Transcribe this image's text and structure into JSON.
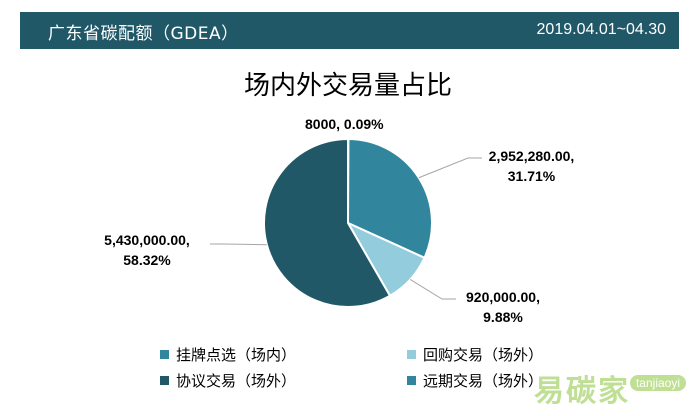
{
  "header": {
    "title": "广东省碳配额（GDEA）",
    "date_range": "2019.04.01~04.30",
    "background_color": "#215868"
  },
  "chart_data": {
    "type": "pie",
    "title": "场内外交易量占比",
    "slices": [
      {
        "name": "挂牌点选（场内）",
        "value": 2952280.0,
        "percent": 31.71,
        "label_value": "2,952,280.00,",
        "label_percent": "31.71%",
        "color": "#31859c"
      },
      {
        "name": "回购交易（场外）",
        "value": 920000.0,
        "percent": 9.88,
        "label_value": "920,000.00,",
        "label_percent": "9.88%",
        "color": "#93cddd"
      },
      {
        "name": "协议交易（场外）",
        "value": 5430000.0,
        "percent": 58.32,
        "label_value": "5,430,000.00,",
        "label_percent": "58.32%",
        "color": "#215868"
      },
      {
        "name": "远期交易（场外）",
        "value": 8000,
        "percent": 0.09,
        "label_value": "8000, 0.09%",
        "label_percent": "",
        "color": "#31859c"
      }
    ],
    "legend": {
      "position": "bottom",
      "items": [
        "挂牌点选（场内）",
        "回购交易（场外）",
        "协议交易（场外）",
        "远期交易（场外）"
      ]
    }
  },
  "watermark": {
    "text_cn": "易碳家",
    "text_en": "tanjiaoyi"
  }
}
